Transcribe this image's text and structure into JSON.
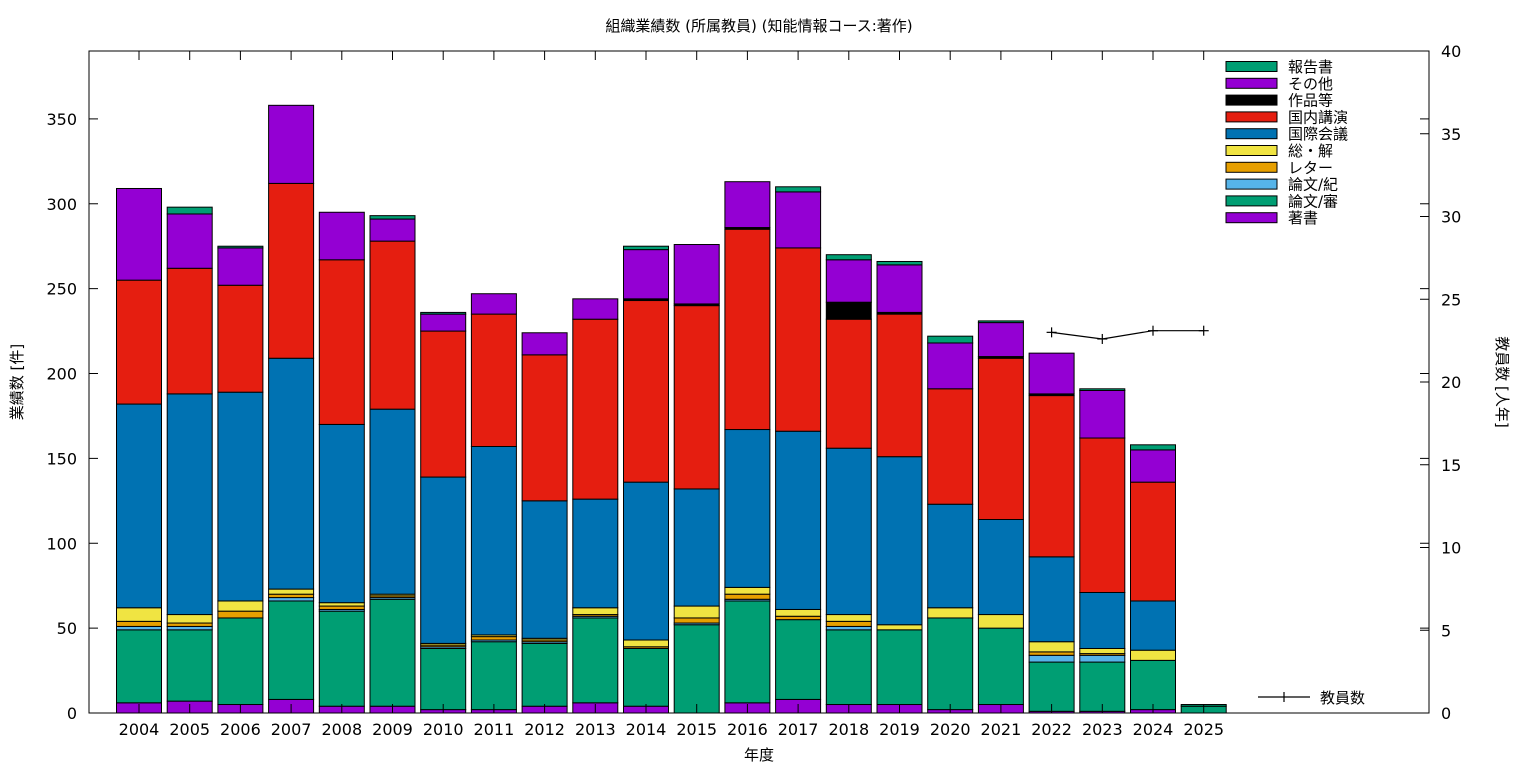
{
  "chart_data": {
    "type": "bar",
    "stacked": true,
    "title": "組織業績数 (所属教員) (知能情報コース:著作)",
    "xlabel": "年度",
    "ylabel": "業績数 [件]",
    "y2label": "教員数 [人年]",
    "ylim": [
      0,
      390
    ],
    "y2lim": [
      0,
      40
    ],
    "yticks": [
      0,
      50,
      100,
      150,
      200,
      250,
      300,
      350
    ],
    "y2ticks": [
      0,
      5,
      10,
      15,
      20,
      25,
      30,
      35,
      40
    ],
    "grid": false,
    "legend_position": "top-right",
    "categories": [
      "2004",
      "2005",
      "2006",
      "2007",
      "2008",
      "2009",
      "2010",
      "2011",
      "2012",
      "2013",
      "2014",
      "2015",
      "2016",
      "2017",
      "2018",
      "2019",
      "2020",
      "2021",
      "2022",
      "2023",
      "2024",
      "2025"
    ],
    "series": [
      {
        "name": "著書",
        "color": "#9400d3",
        "values": [
          6,
          7,
          5,
          8,
          4,
          4,
          2,
          2,
          4,
          6,
          4,
          0,
          6,
          8,
          5,
          5,
          2,
          5,
          1,
          1,
          2,
          0
        ]
      },
      {
        "name": "論文/審",
        "color": "#009e73",
        "values": [
          43,
          42,
          51,
          58,
          56,
          63,
          36,
          40,
          37,
          50,
          34,
          52,
          60,
          47,
          44,
          44,
          54,
          45,
          29,
          29,
          29,
          4
        ]
      },
      {
        "name": "論文/紀",
        "color": "#56b4e9",
        "values": [
          2,
          2,
          0,
          2,
          1,
          1,
          1,
          1,
          1,
          1,
          0,
          1,
          1,
          0,
          2,
          0,
          0,
          0,
          4,
          4,
          0,
          0
        ]
      },
      {
        "name": "レター",
        "color": "#e69f00",
        "values": [
          3,
          2,
          4,
          2,
          2,
          1,
          1,
          2,
          1,
          1,
          1,
          3,
          3,
          2,
          3,
          0,
          0,
          0,
          2,
          1,
          0,
          0
        ]
      },
      {
        "name": "総・解",
        "color": "#f0e442",
        "values": [
          8,
          5,
          6,
          3,
          2,
          1,
          1,
          1,
          1,
          4,
          4,
          7,
          4,
          4,
          4,
          3,
          6,
          8,
          6,
          3,
          6,
          0
        ]
      },
      {
        "name": "国際会議",
        "color": "#0072b2",
        "values": [
          120,
          130,
          123,
          136,
          105,
          109,
          98,
          111,
          81,
          64,
          93,
          69,
          93,
          105,
          98,
          99,
          61,
          56,
          50,
          33,
          29,
          0
        ]
      },
      {
        "name": "国内講演",
        "color": "#e51e10",
        "values": [
          73,
          74,
          63,
          103,
          97,
          99,
          86,
          78,
          86,
          106,
          107,
          108,
          118,
          108,
          76,
          84,
          68,
          95,
          95,
          91,
          70,
          0
        ]
      },
      {
        "name": "作品等",
        "color": "#000000",
        "values": [
          0,
          0,
          0,
          0,
          0,
          0,
          0,
          0,
          0,
          0,
          1,
          1,
          1,
          0,
          10,
          1,
          0,
          1,
          1,
          0,
          0,
          0
        ]
      },
      {
        "name": "その他",
        "color": "#9400d3",
        "values": [
          54,
          32,
          22,
          46,
          28,
          13,
          10,
          12,
          13,
          12,
          29,
          35,
          27,
          33,
          25,
          28,
          27,
          20,
          24,
          28,
          19,
          0
        ]
      },
      {
        "name": "報告書",
        "color": "#009e73",
        "values": [
          0,
          4,
          1,
          0,
          0,
          2,
          1,
          0,
          0,
          0,
          2,
          0,
          0,
          3,
          3,
          2,
          4,
          1,
          0,
          1,
          3,
          1
        ]
      }
    ],
    "line_series": {
      "name": "教員数",
      "axis": "y2",
      "x": [
        "2022",
        "2023",
        "2024",
        "2025"
      ],
      "values": [
        23,
        22.6,
        23.1,
        23.1
      ]
    }
  }
}
